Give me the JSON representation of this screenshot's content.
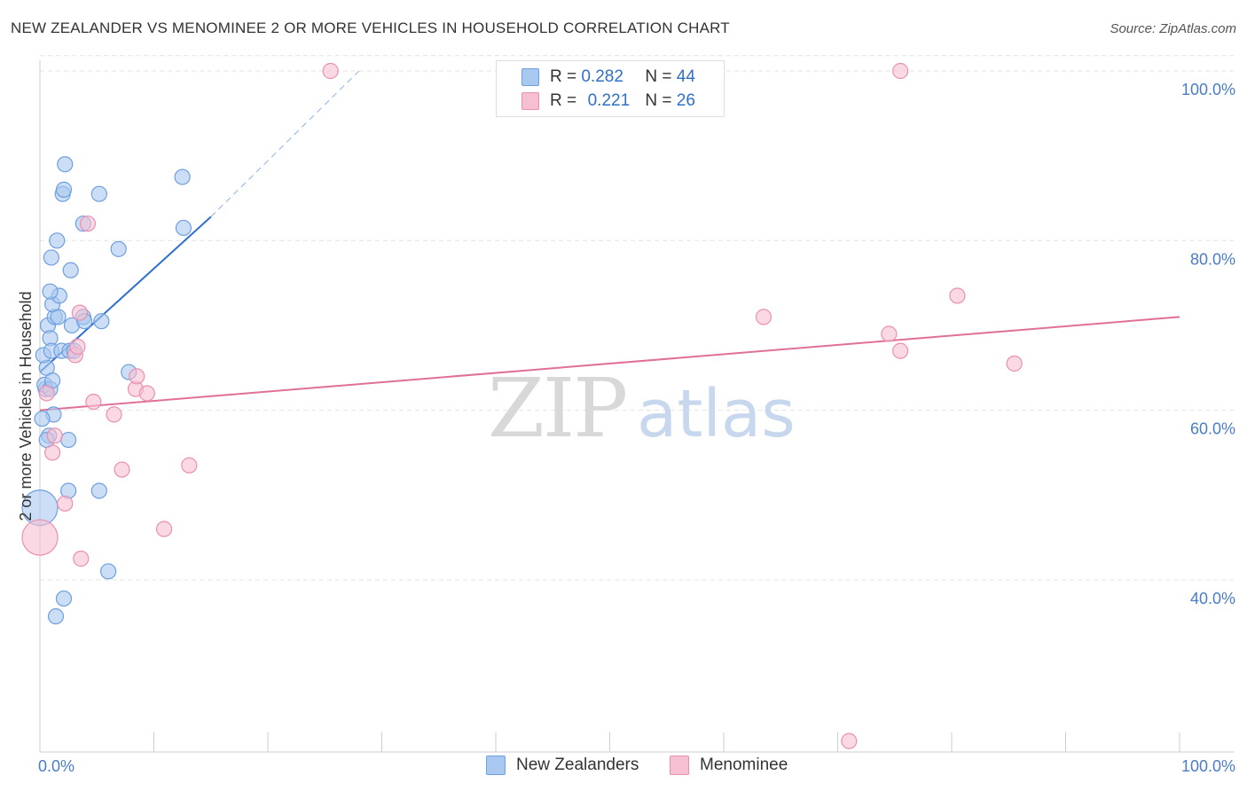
{
  "title": "NEW ZEALANDER VS MENOMINEE 2 OR MORE VEHICLES IN HOUSEHOLD CORRELATION CHART",
  "source": "Source: ZipAtlas.com",
  "watermark": {
    "zip": "ZIP",
    "atlas": "atlas"
  },
  "colors": {
    "blue_fill": "#a9c8f0",
    "blue_stroke": "#6f9fde",
    "blue_line": "#2f6fd0",
    "pink_fill": "#f6bfd2",
    "pink_stroke": "#e890b0",
    "pink_line": "#e0709a",
    "grid": "#e3e3e3",
    "tick_text": "#4a7cc7"
  },
  "legend": {
    "rows": [
      {
        "r_label": "R =",
        "r_value": "0.282",
        "n_label": "N =",
        "n_value": "44"
      },
      {
        "r_label": "R =",
        "r_value": "0.221",
        "n_label": "N =",
        "n_value": "26"
      }
    ],
    "series_names": [
      "New Zealanders",
      "Menominee"
    ]
  },
  "chart_data": {
    "type": "scatter",
    "title": "NEW ZEALANDER VS MENOMINEE 2 OR MORE VEHICLES IN HOUSEHOLD CORRELATION CHART",
    "xlabel": "",
    "ylabel": "2 or more Vehicles in Household",
    "xlim": [
      0,
      100
    ],
    "ylim": [
      20,
      102
    ],
    "x_tick_labels": [
      "0.0%",
      "100.0%"
    ],
    "y_ticks": [
      40,
      60,
      80,
      100
    ],
    "y_tick_labels": [
      "40.0%",
      "60.0%",
      "80.0%",
      "100.0%"
    ],
    "grid": true,
    "legend_position": "top-center",
    "series": [
      {
        "name": "New Zealanders",
        "r": 0.282,
        "n": 44,
        "points": [
          [
            0.5,
            62.5
          ],
          [
            0.6,
            65
          ],
          [
            0.3,
            66.5
          ],
          [
            0.4,
            63
          ],
          [
            0.8,
            57
          ],
          [
            1.2,
            59.5
          ],
          [
            0.2,
            59
          ],
          [
            0.9,
            62.5
          ],
          [
            1.1,
            63.5
          ],
          [
            0.7,
            70
          ],
          [
            0.9,
            68.5
          ],
          [
            1.0,
            67
          ],
          [
            1.3,
            71
          ],
          [
            1.6,
            71
          ],
          [
            1.9,
            67
          ],
          [
            1.1,
            72.5
          ],
          [
            1.7,
            73.5
          ],
          [
            0.9,
            74
          ],
          [
            2.6,
            67
          ],
          [
            3.0,
            67
          ],
          [
            2.8,
            70
          ],
          [
            3.8,
            71
          ],
          [
            3.9,
            70.5
          ],
          [
            5.4,
            70.5
          ],
          [
            7.8,
            64.5
          ],
          [
            1.0,
            78
          ],
          [
            2.7,
            76.5
          ],
          [
            1.5,
            80
          ],
          [
            6.9,
            79
          ],
          [
            3.8,
            82
          ],
          [
            12.6,
            81.5
          ],
          [
            2.0,
            85.5
          ],
          [
            2.1,
            86
          ],
          [
            5.2,
            85.5
          ],
          [
            2.2,
            89
          ],
          [
            12.5,
            87.5
          ],
          [
            0.0,
            48.5
          ],
          [
            2.5,
            50.5
          ],
          [
            5.2,
            50.5
          ],
          [
            2.5,
            56.5
          ],
          [
            6.0,
            41
          ],
          [
            2.1,
            37.8
          ],
          [
            1.4,
            35.7
          ],
          [
            0.6,
            56.5
          ]
        ],
        "bubble_sizes": {
          "[0.0, 48.5]": "large"
        },
        "trend_line": {
          "x0": 0,
          "y0": 64.5,
          "x1": 15,
          "y1": 82.8,
          "dashed_to_x": 28,
          "dashed_to_y": 100
        }
      },
      {
        "name": "Menominee",
        "r": 0.221,
        "n": 26,
        "points": [
          [
            25.5,
            100
          ],
          [
            75.5,
            100
          ],
          [
            4.2,
            82
          ],
          [
            0.0,
            45
          ],
          [
            0.6,
            62
          ],
          [
            1.3,
            57
          ],
          [
            1.1,
            55
          ],
          [
            2.2,
            49
          ],
          [
            3.6,
            42.5
          ],
          [
            4.7,
            61
          ],
          [
            6.5,
            59.5
          ],
          [
            7.2,
            53
          ],
          [
            8.4,
            62.5
          ],
          [
            8.5,
            64
          ],
          [
            9.4,
            62
          ],
          [
            10.9,
            46
          ],
          [
            13.1,
            53.5
          ],
          [
            3.1,
            66.5
          ],
          [
            3.3,
            67.5
          ],
          [
            3.5,
            71.5
          ],
          [
            63.5,
            71
          ],
          [
            74.5,
            69
          ],
          [
            75.5,
            67
          ],
          [
            80.5,
            73.5
          ],
          [
            85.5,
            65.5
          ],
          [
            71.0,
            21
          ]
        ],
        "bubble_sizes": {
          "[0.0, 45]": "large"
        },
        "trend_line": {
          "x0": 0,
          "y0": 60,
          "x1": 100,
          "y1": 71
        }
      }
    ]
  }
}
